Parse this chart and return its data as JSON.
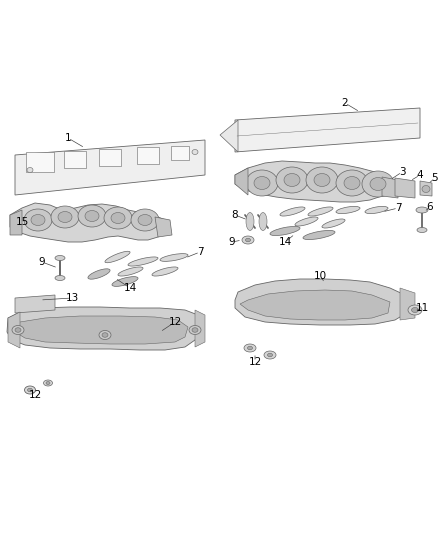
{
  "background_color": "#ffffff",
  "line_color": "#666666",
  "label_color": "#000000",
  "fig_width": 4.38,
  "fig_height": 5.33,
  "dpi": 100
}
